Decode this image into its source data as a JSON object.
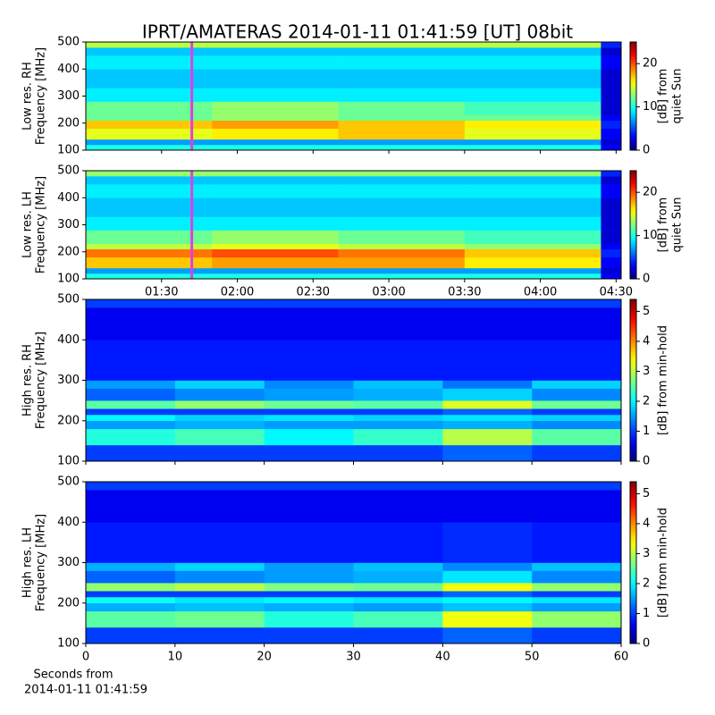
{
  "chart_data": [
    {
      "type": "heatmap",
      "title": "IPRT/AMATERAS 2014-01-11 01:41:59 [UT]   08bit",
      "ylabel": [
        "Low res. RH",
        "Frequency [MHz]"
      ],
      "xlim": [
        60,
        272
      ],
      "xticks": [
        90,
        120,
        150,
        180,
        210,
        240,
        270
      ],
      "xtick_labels": false,
      "ylim": [
        100,
        500
      ],
      "yticks": [
        100,
        200,
        300,
        400,
        500
      ],
      "x_edges": [
        60,
        110,
        160,
        210,
        264,
        272
      ],
      "y_edges": [
        100,
        120,
        140,
        180,
        210,
        230,
        280,
        330,
        400,
        450,
        480,
        500
      ],
      "values": [
        [
          10,
          10,
          10,
          10,
          3
        ],
        [
          7,
          7,
          7,
          7,
          2
        ],
        [
          15,
          16,
          17,
          15,
          3
        ],
        [
          17,
          18,
          17,
          16,
          4
        ],
        [
          12,
          13,
          12,
          12,
          3
        ],
        [
          12,
          13,
          12,
          11,
          2
        ],
        [
          9,
          9,
          9,
          9,
          2
        ],
        [
          8,
          8,
          8,
          8,
          2
        ],
        [
          9,
          9,
          9,
          9,
          3
        ],
        [
          8,
          8,
          8,
          8,
          2
        ],
        [
          14,
          14,
          14,
          14,
          4
        ]
      ],
      "marker": {
        "x": 101.98,
        "color": "#e040e0"
      },
      "colormap": "jet",
      "colorbar": {
        "label": [
          "[dB] from",
          "quiet Sun"
        ],
        "lim": [
          0,
          25
        ],
        "ticks": [
          0,
          10,
          20
        ]
      }
    },
    {
      "type": "heatmap",
      "ylabel": [
        "Low res. LH",
        "Frequency [MHz]"
      ],
      "xlim": [
        60,
        272
      ],
      "xticks": [
        {
          "value": 90,
          "label": "01:30"
        },
        {
          "value": 120,
          "label": "02:00"
        },
        {
          "value": 150,
          "label": "02:30"
        },
        {
          "value": 180,
          "label": "03:00"
        },
        {
          "value": 210,
          "label": "03:30"
        },
        {
          "value": 240,
          "label": "04:00"
        },
        {
          "value": 270,
          "label": "04:30"
        }
      ],
      "xtick_labels": true,
      "ylim": [
        100,
        500
      ],
      "yticks": [
        100,
        200,
        300,
        400,
        500
      ],
      "x_edges": [
        60,
        110,
        160,
        210,
        264,
        272
      ],
      "y_edges": [
        100,
        120,
        140,
        180,
        210,
        230,
        280,
        330,
        400,
        450,
        480,
        500
      ],
      "values": [
        [
          10,
          10,
          10,
          10,
          3
        ],
        [
          7,
          7,
          7,
          7,
          2
        ],
        [
          17,
          18,
          18,
          16,
          3
        ],
        [
          19,
          20,
          19,
          17,
          4
        ],
        [
          14,
          15,
          14,
          13,
          3
        ],
        [
          12,
          13,
          12,
          11,
          2
        ],
        [
          9,
          9,
          9,
          9,
          2
        ],
        [
          8,
          8,
          8,
          8,
          2
        ],
        [
          9,
          9,
          9,
          9,
          3
        ],
        [
          8,
          8,
          8,
          8,
          2
        ],
        [
          13,
          13,
          13,
          13,
          4
        ]
      ],
      "marker": {
        "x": 101.98,
        "color": "#e040e0"
      },
      "colormap": "jet",
      "colorbar": {
        "label": [
          "[dB] from",
          "quiet Sun"
        ],
        "lim": [
          0,
          25
        ],
        "ticks": [
          0,
          10,
          20
        ]
      }
    },
    {
      "type": "heatmap",
      "ylabel": [
        "High res. RH",
        "Frequency [MHz]"
      ],
      "xlim": [
        0,
        60
      ],
      "xticks": [
        0,
        10,
        20,
        30,
        40,
        50,
        60
      ],
      "xtick_labels": false,
      "ylim": [
        100,
        500
      ],
      "yticks": [
        100,
        200,
        300,
        400,
        500
      ],
      "x_edges": [
        0,
        10,
        20,
        30,
        40,
        50,
        60
      ],
      "y_edges": [
        100,
        140,
        180,
        200,
        215,
        230,
        250,
        280,
        300,
        400,
        480,
        500
      ],
      "values": [
        [
          1,
          1,
          1,
          1,
          1.2,
          1
        ],
        [
          2.2,
          2.4,
          2,
          2.3,
          3,
          2.5
        ],
        [
          1.5,
          1.6,
          1.5,
          1.5,
          1.6,
          1.4
        ],
        [
          2,
          1.8,
          1.9,
          1.8,
          1.9,
          1.8
        ],
        [
          1,
          1,
          1,
          1,
          1.2,
          1
        ],
        [
          2.5,
          2.8,
          2.6,
          2.5,
          3.2,
          2.6
        ],
        [
          1.2,
          1.4,
          1.5,
          1.6,
          1.8,
          1.4
        ],
        [
          1.5,
          1.8,
          1.4,
          1.7,
          1.3,
          1.8
        ],
        [
          0.8,
          0.8,
          0.8,
          0.8,
          0.8,
          0.8
        ],
        [
          0.6,
          0.6,
          0.6,
          0.6,
          0.6,
          0.6
        ],
        [
          1,
          1,
          1,
          1,
          1,
          1
        ]
      ],
      "colormap": "jet",
      "colorbar": {
        "label": [
          "[dB] from min-hold"
        ],
        "lim": [
          0,
          5.4
        ],
        "ticks": [
          0,
          1,
          2,
          3,
          4,
          5
        ]
      }
    },
    {
      "type": "heatmap",
      "ylabel": [
        "High res. LH",
        "Frequency [MHz]"
      ],
      "xlim": [
        0,
        60
      ],
      "xticks": [
        0,
        10,
        20,
        30,
        40,
        50,
        60
      ],
      "xtick_labels": true,
      "xlabel": [
        "Seconds from",
        "2014-01-11 01:41:59"
      ],
      "ylim": [
        100,
        500
      ],
      "yticks": [
        100,
        200,
        300,
        400,
        500
      ],
      "x_edges": [
        0,
        10,
        20,
        30,
        40,
        50,
        60
      ],
      "y_edges": [
        100,
        140,
        180,
        200,
        215,
        230,
        250,
        280,
        300,
        400,
        480,
        500
      ],
      "values": [
        [
          1,
          1,
          1,
          1,
          1.2,
          1
        ],
        [
          2.5,
          2.6,
          2.2,
          2.4,
          3.3,
          2.8
        ],
        [
          1.6,
          1.7,
          1.6,
          1.5,
          1.7,
          1.5
        ],
        [
          2.1,
          1.9,
          2,
          1.9,
          2,
          1.9
        ],
        [
          1,
          1,
          1,
          1,
          1.2,
          1
        ],
        [
          2.8,
          3,
          2.7,
          2.6,
          3.3,
          2.8
        ],
        [
          1.2,
          1.4,
          1.5,
          1.6,
          1.9,
          1.4
        ],
        [
          1.6,
          1.8,
          1.5,
          1.7,
          1.4,
          1.7
        ],
        [
          0.8,
          0.8,
          0.8,
          0.8,
          0.9,
          0.8
        ],
        [
          0.6,
          0.6,
          0.6,
          0.6,
          0.6,
          0.6
        ],
        [
          1,
          1,
          1,
          1,
          1,
          1
        ]
      ],
      "colormap": "jet",
      "colorbar": {
        "label": [
          "[dB] from min-hold"
        ],
        "lim": [
          0,
          5.4
        ],
        "ticks": [
          0,
          1,
          2,
          3,
          4,
          5
        ]
      }
    }
  ]
}
